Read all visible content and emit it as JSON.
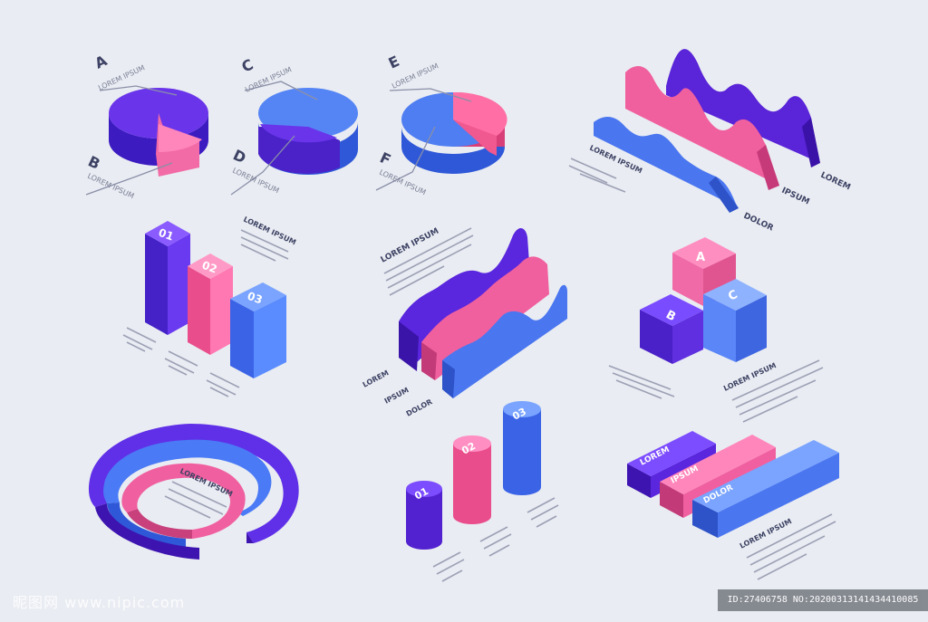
{
  "colors": {
    "violet": "#5b2de0",
    "pink": "#f0518f",
    "blue": "#4a72f0",
    "text": "#3d4264",
    "bg": "#e9ecf2"
  },
  "watermark": {
    "site": "昵图网 www.nipic.com",
    "id": "ID:27406758 NO:20200313141434410085"
  },
  "chart_data": [
    {
      "type": "pie",
      "slices": [
        {
          "name": "A",
          "value": 80
        },
        {
          "name": "B",
          "value": 20
        }
      ],
      "caption": "LOREM IPSUM"
    },
    {
      "type": "pie",
      "slices": [
        {
          "name": "C",
          "value": 68
        },
        {
          "name": "D",
          "value": 32
        }
      ],
      "caption": "LOREM IPSUM"
    },
    {
      "type": "pie",
      "slices": [
        {
          "name": "E",
          "value": 30
        },
        {
          "name": "F",
          "value": 70
        }
      ],
      "caption": "LOREM IPSUM"
    },
    {
      "type": "area",
      "series": [
        {
          "name": "LOREM",
          "values": [
            5,
            9,
            6,
            8,
            4,
            7,
            3,
            8,
            5
          ]
        },
        {
          "name": "IPSUM",
          "values": [
            6,
            4,
            7,
            3,
            6,
            2,
            5,
            3,
            4
          ]
        },
        {
          "name": "DOLOR",
          "values": [
            3,
            5,
            2,
            6,
            3,
            5,
            2,
            4,
            1
          ]
        }
      ],
      "notes": [
        "LOREM IPSUM"
      ]
    },
    {
      "type": "bar",
      "categories": [
        "01",
        "02",
        "03"
      ],
      "values": [
        3,
        2,
        1.4
      ],
      "title": "LOREM IPSUM"
    },
    {
      "type": "area",
      "series": [
        {
          "name": "LOREM",
          "values": [
            2,
            3,
            4,
            5,
            6,
            8,
            10
          ]
        },
        {
          "name": "IPSUM",
          "values": [
            1,
            2,
            3,
            4,
            5,
            6,
            7
          ]
        },
        {
          "name": "DOLOR",
          "values": [
            1,
            2,
            3,
            2,
            3,
            4,
            3
          ]
        }
      ],
      "title": "LOREM IPSUM"
    },
    {
      "type": "bar",
      "categories": [
        "A",
        "B",
        "C"
      ],
      "caption": "LOREM IPSUM"
    },
    {
      "type": "pie",
      "variant": "ring",
      "rings": [
        {
          "name": "outer",
          "value": 70
        },
        {
          "name": "middle",
          "value": 78
        },
        {
          "name": "inner",
          "value": 82
        }
      ],
      "caption": "LOREM IPSUM"
    },
    {
      "type": "bar",
      "variant": "cylinder",
      "categories": [
        "01",
        "02",
        "03"
      ],
      "values": [
        1,
        1.6,
        2.3
      ]
    },
    {
      "type": "bar",
      "orientation": "horizontal",
      "categories": [
        "LOREM",
        "IPSUM",
        "DOLOR"
      ],
      "values": [
        2,
        2.5,
        3.4
      ],
      "caption": "LOREM IPSUM"
    }
  ]
}
